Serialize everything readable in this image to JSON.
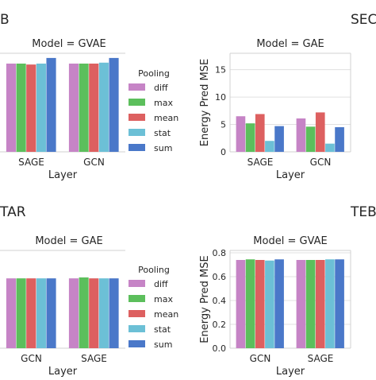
{
  "page_labels": {
    "top_left": "B",
    "top_right": "SEC",
    "bottom_left": "TAR",
    "bottom_right": "TEB"
  },
  "legend": {
    "title": "Pooling",
    "items": [
      {
        "name": "diff",
        "color": "#c684c6"
      },
      {
        "name": "max",
        "color": "#5cbf5c"
      },
      {
        "name": "mean",
        "color": "#dd6060"
      },
      {
        "name": "stat",
        "color": "#6cc0d6"
      },
      {
        "name": "sum",
        "color": "#4a78c9"
      }
    ]
  },
  "chart_data": [
    {
      "id": "top-left",
      "type": "bar",
      "title": "Model = GVAE",
      "xlabel": "Layer",
      "ylabel": "",
      "categories": [
        "SAGE",
        "GCN"
      ],
      "ylim": [
        0,
        1.05
      ],
      "yticks": [],
      "ytick_labels": [],
      "grid": true,
      "series": [
        {
          "name": "diff",
          "values": [
            0.94,
            0.94
          ]
        },
        {
          "name": "max",
          "values": [
            0.94,
            0.94
          ]
        },
        {
          "name": "mean",
          "values": [
            0.93,
            0.94
          ]
        },
        {
          "name": "stat",
          "values": [
            0.94,
            0.95
          ]
        },
        {
          "name": "sum",
          "values": [
            1.0,
            1.0
          ]
        }
      ]
    },
    {
      "id": "top-right",
      "type": "bar",
      "title": "Model = GAE",
      "xlabel": "Layer",
      "ylabel": "Energy Pred MSE",
      "categories": [
        "SAGE",
        "GCN"
      ],
      "ylim": [
        0,
        18
      ],
      "yticks": [
        0,
        5,
        10,
        15
      ],
      "ytick_labels": [
        "0",
        "5",
        "10",
        "15"
      ],
      "grid": true,
      "series": [
        {
          "name": "diff",
          "values": [
            6.5,
            6.1
          ]
        },
        {
          "name": "max",
          "values": [
            5.2,
            4.6
          ]
        },
        {
          "name": "mean",
          "values": [
            6.9,
            7.2
          ]
        },
        {
          "name": "stat",
          "values": [
            2.0,
            1.5
          ]
        },
        {
          "name": "sum",
          "values": [
            4.7,
            4.5
          ]
        }
      ]
    },
    {
      "id": "bottom-left",
      "type": "bar",
      "title": "Model = GAE",
      "xlabel": "Layer",
      "ylabel": "",
      "categories": [
        "GCN",
        "SAGE"
      ],
      "ylim": [
        0,
        1.05
      ],
      "yticks": [],
      "ytick_labels": [],
      "grid": true,
      "series": [
        {
          "name": "diff",
          "values": [
            0.75,
            0.75
          ]
        },
        {
          "name": "max",
          "values": [
            0.75,
            0.76
          ]
        },
        {
          "name": "mean",
          "values": [
            0.75,
            0.75
          ]
        },
        {
          "name": "stat",
          "values": [
            0.75,
            0.75
          ]
        },
        {
          "name": "sum",
          "values": [
            0.75,
            0.75
          ]
        }
      ]
    },
    {
      "id": "bottom-right",
      "type": "bar",
      "title": "Model = GVAE",
      "xlabel": "Layer",
      "ylabel": "Energy Pred MSE",
      "categories": [
        "GCN",
        "SAGE"
      ],
      "ylim": [
        0,
        0.82
      ],
      "yticks": [
        0,
        0.2,
        0.4,
        0.6,
        0.8
      ],
      "ytick_labels": [
        "0.0",
        "0.2",
        "0.4",
        "0.6",
        "0.8"
      ],
      "grid": true,
      "series": [
        {
          "name": "diff",
          "values": [
            0.74,
            0.74
          ]
        },
        {
          "name": "max",
          "values": [
            0.745,
            0.74
          ]
        },
        {
          "name": "mean",
          "values": [
            0.74,
            0.74
          ]
        },
        {
          "name": "stat",
          "values": [
            0.735,
            0.745
          ]
        },
        {
          "name": "sum",
          "values": [
            0.745,
            0.745
          ]
        }
      ]
    }
  ]
}
